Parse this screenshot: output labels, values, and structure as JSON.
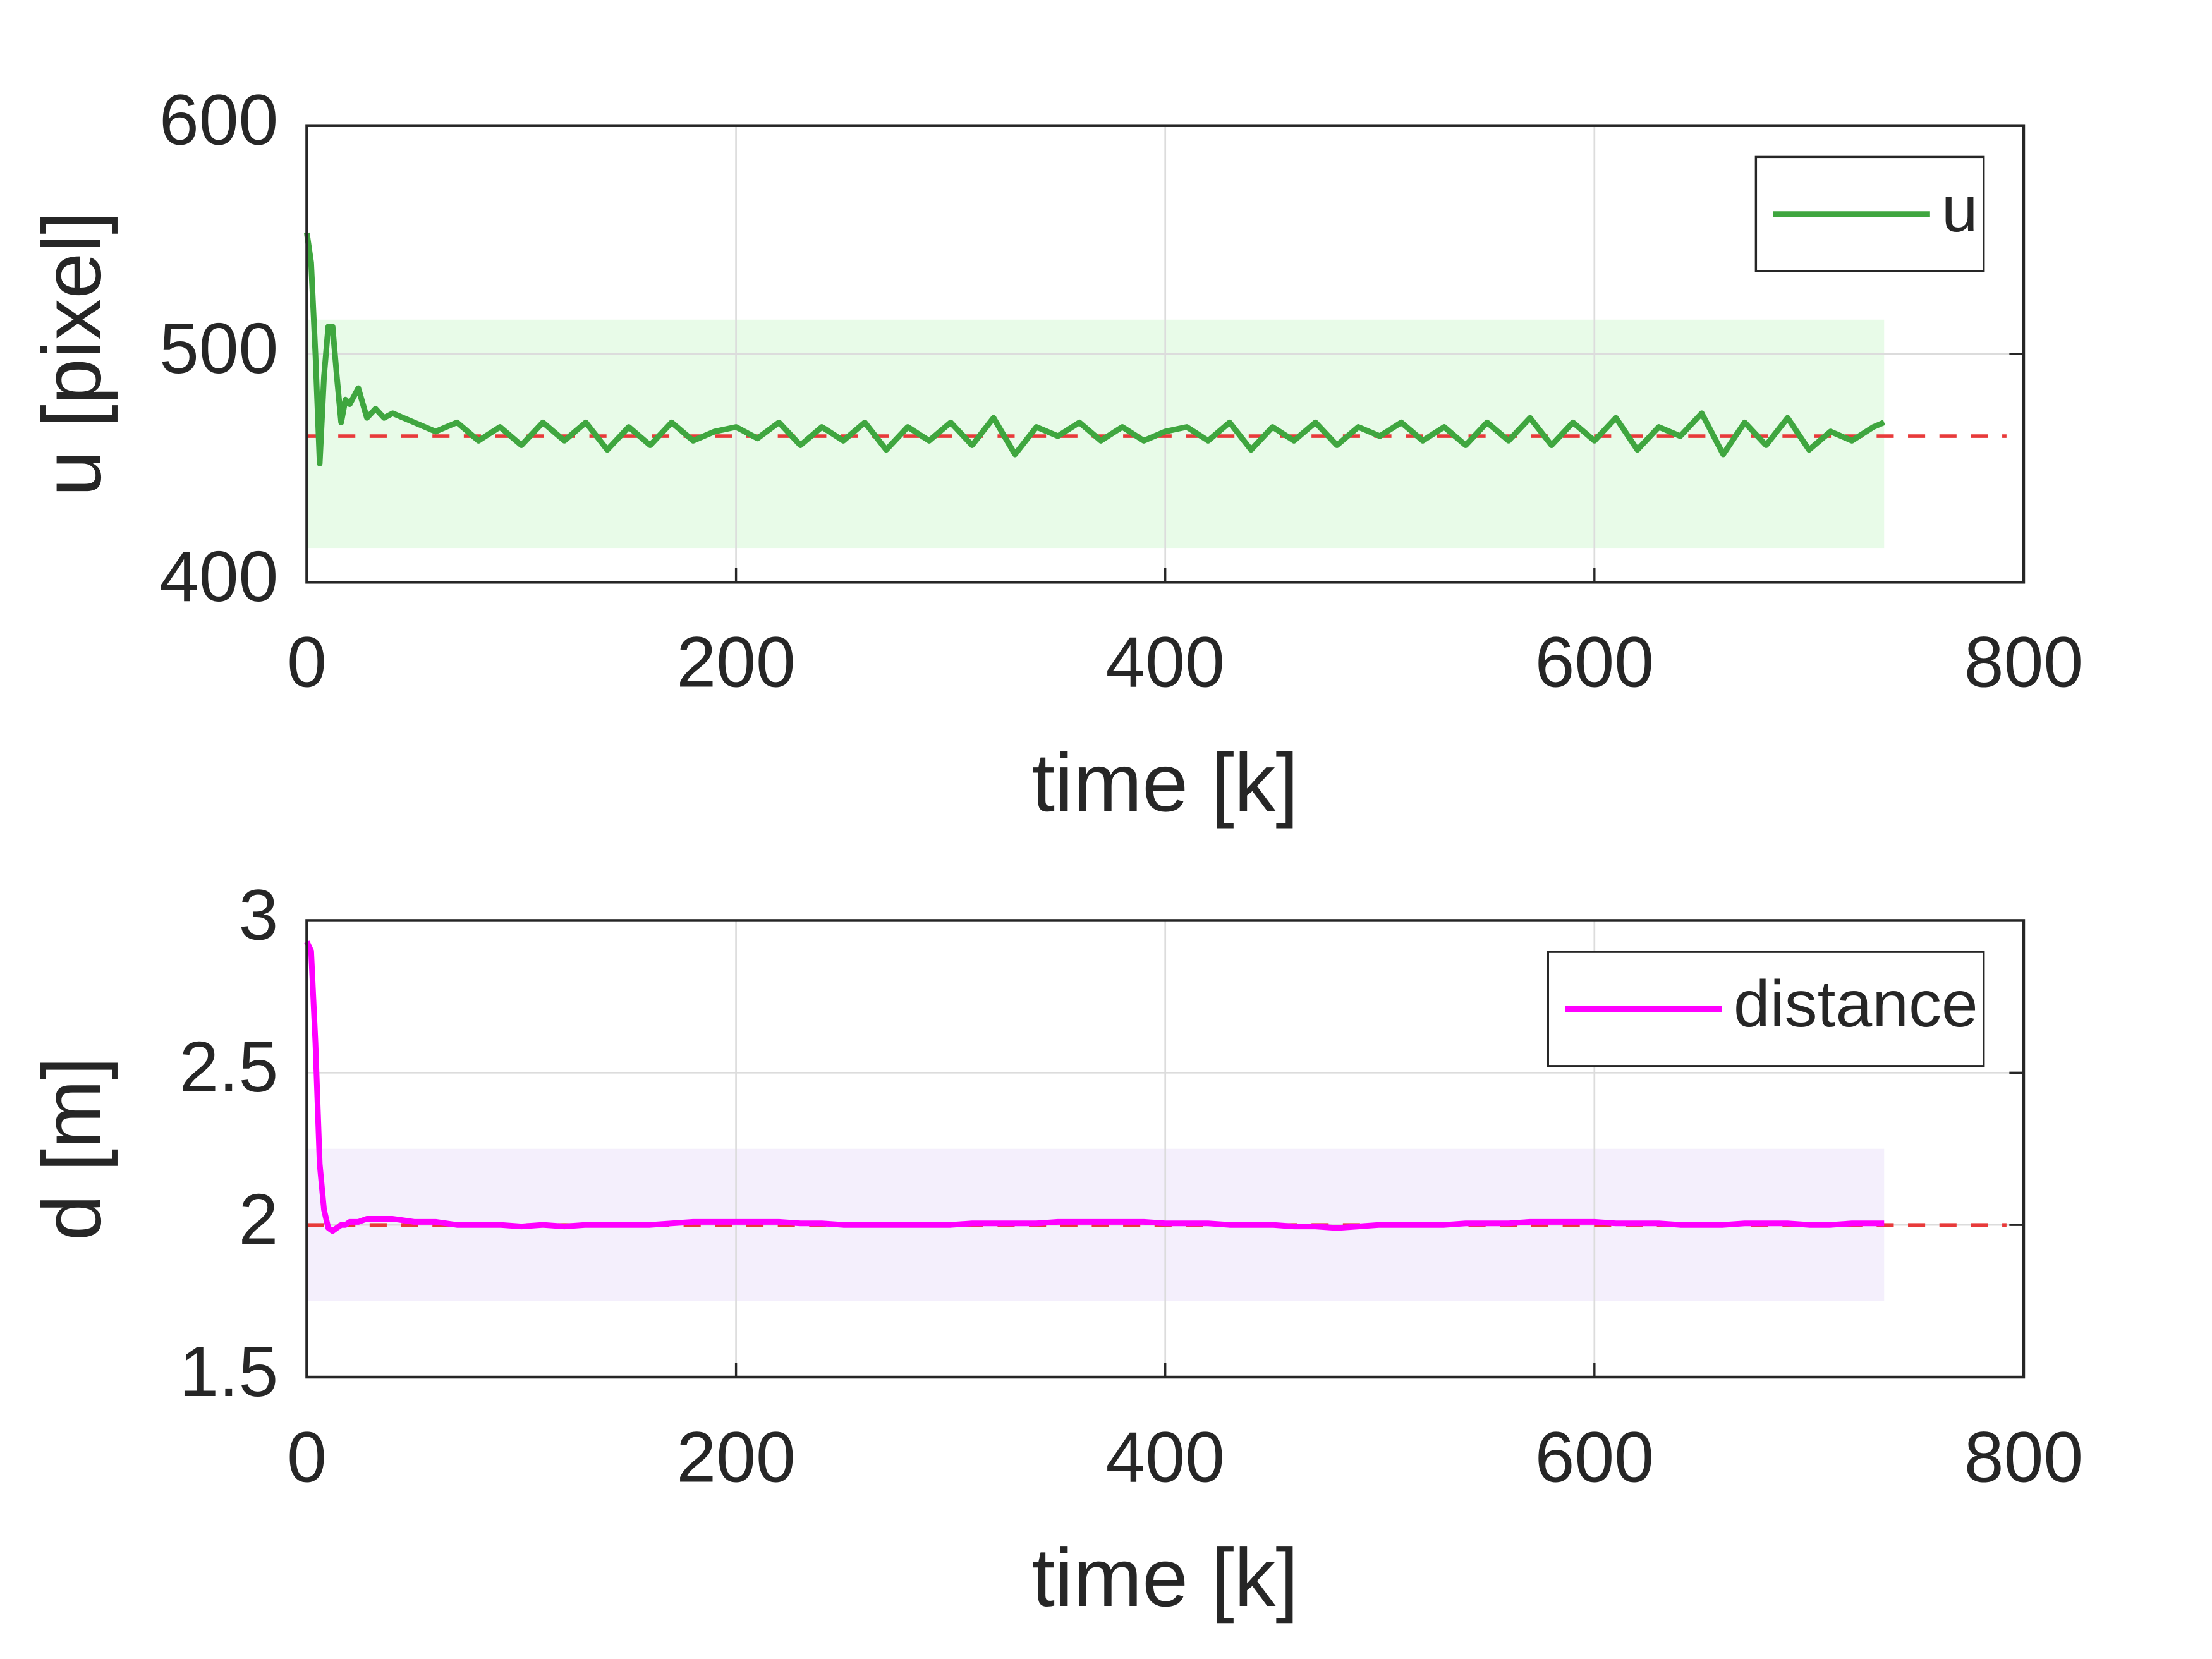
{
  "chart_data": [
    {
      "type": "line",
      "xlabel": "time [k]",
      "ylabel": "u [pixel]",
      "xlim": [
        0,
        800
      ],
      "xticks": [
        0,
        200,
        400,
        600,
        800
      ],
      "ylim": [
        400,
        600
      ],
      "yticks": [
        400,
        500,
        600
      ],
      "grid": true,
      "legend": "upper right",
      "reference_line": 464,
      "reference_color": "#e83a3a",
      "band": [
        415,
        515
      ],
      "band_color": "#e8fbe8",
      "x": [
        0,
        2,
        4,
        6,
        8,
        10,
        12,
        14,
        16,
        18,
        20,
        24,
        28,
        32,
        36,
        40,
        50,
        60,
        70,
        80,
        90,
        100,
        110,
        120,
        130,
        140,
        150,
        160,
        170,
        180,
        190,
        200,
        210,
        220,
        230,
        240,
        250,
        260,
        270,
        280,
        290,
        300,
        310,
        320,
        330,
        340,
        350,
        360,
        370,
        380,
        390,
        400,
        410,
        420,
        430,
        440,
        450,
        460,
        470,
        480,
        490,
        500,
        510,
        520,
        530,
        540,
        550,
        560,
        570,
        580,
        590,
        600,
        610,
        620,
        630,
        640,
        650,
        660,
        670,
        680,
        690,
        700,
        710,
        720,
        730,
        735
      ],
      "series": [
        {
          "name": "u",
          "color": "#3fa63f",
          "values": [
            553,
            540,
            500,
            452,
            490,
            512,
            512,
            490,
            470,
            480,
            478,
            485,
            472,
            476,
            472,
            474,
            470,
            466,
            470,
            462,
            468,
            460,
            470,
            462,
            470,
            458,
            468,
            460,
            470,
            462,
            466,
            468,
            463,
            470,
            460,
            468,
            462,
            470,
            458,
            468,
            462,
            470,
            460,
            472,
            456,
            468,
            464,
            470,
            462,
            468,
            462,
            466,
            468,
            462,
            470,
            458,
            468,
            462,
            470,
            460,
            468,
            464,
            470,
            462,
            468,
            460,
            470,
            462,
            472,
            460,
            470,
            462,
            472,
            458,
            468,
            464,
            474,
            456,
            470,
            460,
            472,
            458,
            466,
            462,
            468,
            470
          ]
        }
      ]
    },
    {
      "type": "line",
      "xlabel": "time [k]",
      "ylabel": "d [m]",
      "xlim": [
        0,
        800
      ],
      "xticks": [
        0,
        200,
        400,
        600,
        800
      ],
      "ylim": [
        1.5,
        3
      ],
      "yticks": [
        1.5,
        2,
        2.5,
        3
      ],
      "grid": true,
      "legend": "upper right",
      "reference_line": 2,
      "reference_color": "#e83a3a",
      "band": [
        1.75,
        2.25
      ],
      "band_color": "#f4effc",
      "x": [
        0,
        2,
        4,
        6,
        8,
        10,
        12,
        14,
        16,
        18,
        20,
        24,
        28,
        32,
        36,
        40,
        50,
        60,
        70,
        80,
        90,
        100,
        110,
        120,
        130,
        140,
        150,
        160,
        170,
        180,
        190,
        200,
        210,
        220,
        230,
        240,
        250,
        260,
        270,
        280,
        290,
        300,
        310,
        320,
        330,
        340,
        350,
        360,
        370,
        380,
        390,
        400,
        410,
        420,
        430,
        440,
        450,
        460,
        470,
        480,
        490,
        500,
        510,
        520,
        530,
        540,
        550,
        560,
        570,
        580,
        590,
        600,
        610,
        620,
        630,
        640,
        650,
        660,
        670,
        680,
        690,
        700,
        710,
        720,
        730,
        735
      ],
      "series": [
        {
          "name": "distance",
          "color": "#ff00ff",
          "values": [
            2.93,
            2.9,
            2.6,
            2.2,
            2.05,
            1.99,
            1.98,
            1.99,
            2.0,
            2.0,
            2.01,
            2.01,
            2.02,
            2.02,
            2.02,
            2.02,
            2.01,
            2.01,
            2.0,
            2.0,
            2.0,
            1.995,
            2.0,
            1.995,
            2.0,
            2.0,
            2.0,
            2.0,
            2.005,
            2.01,
            2.01,
            2.01,
            2.01,
            2.01,
            2.005,
            2.005,
            2.0,
            2.0,
            2.0,
            2.0,
            2.0,
            2.0,
            2.005,
            2.005,
            2.005,
            2.005,
            2.01,
            2.01,
            2.01,
            2.01,
            2.01,
            2.005,
            2.005,
            2.005,
            2.0,
            2.0,
            2.0,
            1.995,
            1.995,
            1.99,
            1.995,
            2.0,
            2.0,
            2.0,
            2.0,
            2.005,
            2.005,
            2.005,
            2.01,
            2.01,
            2.01,
            2.01,
            2.005,
            2.005,
            2.005,
            2.0,
            2.0,
            2.0,
            2.005,
            2.005,
            2.005,
            2.0,
            2.0,
            2.005,
            2.005,
            2.005
          ]
        }
      ]
    }
  ]
}
